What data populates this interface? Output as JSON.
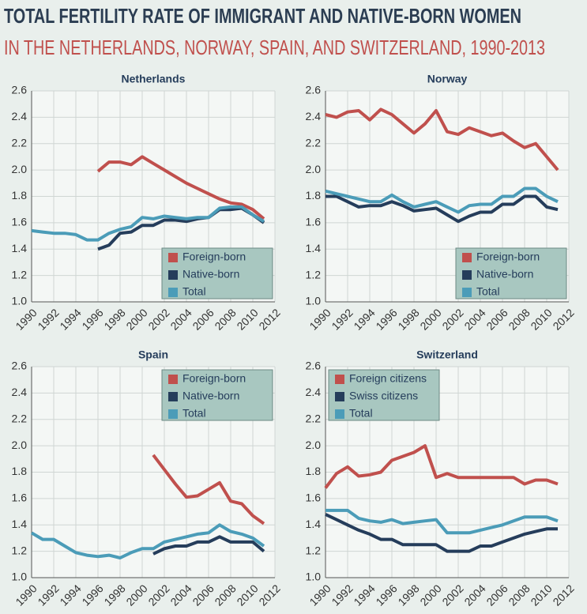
{
  "title": "TOTAL FERTILITY RATE OF IMMIGRANT AND NATIVE-BORN WOMEN",
  "subtitle": "IN THE NETHERLANDS, NORWAY, SPAIN, AND SWITZERLAND, 1990-2013",
  "chart_data": [
    {
      "type": "line",
      "title": "Netherlands",
      "legend": "lower right",
      "grid": true,
      "xlim": [
        1990,
        2012
      ],
      "xticks": [
        1990,
        1992,
        1994,
        1996,
        1998,
        2000,
        2002,
        2004,
        2006,
        2008,
        2010,
        2012
      ],
      "ylim": [
        1.0,
        2.6
      ],
      "yticks": [
        {
          "value": 1.0,
          "label": "1.0"
        },
        1.2,
        1.4,
        1.6,
        1.8,
        {
          "value": 2.0,
          "label": "2.0"
        },
        2.2,
        2.4,
        2.6
      ],
      "series": [
        {
          "name": "Foreign-born",
          "color": "#c0504d",
          "x": [
            1996,
            1997,
            1998,
            1999,
            2000,
            2001,
            2002,
            2003,
            2004,
            2005,
            2006,
            2007,
            2008,
            2009,
            2010,
            2011
          ],
          "values": [
            1.99,
            2.06,
            2.06,
            2.04,
            2.1,
            2.05,
            2.0,
            1.95,
            1.9,
            1.86,
            1.82,
            1.78,
            1.75,
            1.74,
            1.7,
            1.63
          ]
        },
        {
          "name": "Native-born",
          "color": "#253d5b",
          "x": [
            1996,
            1997,
            1998,
            1999,
            2000,
            2001,
            2002,
            2003,
            2004,
            2005,
            2006,
            2007,
            2008,
            2009,
            2010,
            2011
          ],
          "values": [
            1.4,
            1.43,
            1.52,
            1.53,
            1.58,
            1.58,
            1.62,
            1.62,
            1.61,
            1.63,
            1.64,
            1.7,
            1.7,
            1.71,
            1.66,
            1.6
          ]
        },
        {
          "name": "Total",
          "color": "#4b9cb8",
          "x": [
            1990,
            1991,
            1992,
            1993,
            1994,
            1995,
            1996,
            1997,
            1998,
            1999,
            2000,
            2001,
            2002,
            2003,
            2004,
            2005,
            2006,
            2007,
            2008,
            2009,
            2010,
            2011
          ],
          "values": [
            1.54,
            1.53,
            1.52,
            1.52,
            1.51,
            1.47,
            1.47,
            1.52,
            1.55,
            1.57,
            1.64,
            1.63,
            1.65,
            1.64,
            1.63,
            1.64,
            1.64,
            1.71,
            1.72,
            1.72,
            1.66,
            1.61
          ]
        }
      ]
    },
    {
      "type": "line",
      "title": "Norway",
      "legend": "lower right",
      "grid": true,
      "xlim": [
        1990,
        2012
      ],
      "xticks": [
        1990,
        1992,
        1994,
        1996,
        1998,
        2000,
        2002,
        2004,
        2006,
        2008,
        2010,
        2012
      ],
      "ylim": [
        1.0,
        2.6
      ],
      "yticks": [
        {
          "value": 1.0,
          "label": "1.0"
        },
        1.2,
        1.4,
        1.6,
        1.8,
        {
          "value": 2.0,
          "label": "2.0"
        },
        2.2,
        2.4,
        2.6
      ],
      "series": [
        {
          "name": "Foreign-born",
          "color": "#c0504d",
          "x": [
            1990,
            1991,
            1992,
            1993,
            1994,
            1995,
            1996,
            1997,
            1998,
            1999,
            2000,
            2001,
            2002,
            2003,
            2004,
            2005,
            2006,
            2007,
            2008,
            2009,
            2010,
            2011
          ],
          "values": [
            2.42,
            2.4,
            2.44,
            2.45,
            2.38,
            2.46,
            2.42,
            2.35,
            2.28,
            2.35,
            2.45,
            2.29,
            2.27,
            2.32,
            2.29,
            2.26,
            2.28,
            2.22,
            2.17,
            2.2,
            2.1,
            2.0
          ]
        },
        {
          "name": "Native-born",
          "color": "#253d5b",
          "x": [
            1990,
            1991,
            1992,
            1993,
            1994,
            1995,
            1996,
            1997,
            1998,
            1999,
            2000,
            2001,
            2002,
            2003,
            2004,
            2005,
            2006,
            2007,
            2008,
            2009,
            2010,
            2011
          ],
          "values": [
            1.8,
            1.8,
            1.76,
            1.72,
            1.73,
            1.73,
            1.76,
            1.73,
            1.69,
            1.7,
            1.71,
            1.66,
            1.61,
            1.65,
            1.68,
            1.68,
            1.74,
            1.74,
            1.8,
            1.8,
            1.72,
            1.7
          ]
        },
        {
          "name": "Total",
          "color": "#4b9cb8",
          "x": [
            1990,
            1991,
            1992,
            1993,
            1994,
            1995,
            1996,
            1997,
            1998,
            1999,
            2000,
            2001,
            2002,
            2003,
            2004,
            2005,
            2006,
            2007,
            2008,
            2009,
            2010,
            2011
          ],
          "values": [
            1.84,
            1.82,
            1.8,
            1.78,
            1.76,
            1.76,
            1.81,
            1.76,
            1.72,
            1.74,
            1.76,
            1.72,
            1.68,
            1.73,
            1.74,
            1.74,
            1.8,
            1.8,
            1.86,
            1.86,
            1.8,
            1.76
          ]
        }
      ]
    },
    {
      "type": "line",
      "title": "Spain",
      "legend": "upper right",
      "grid": true,
      "xlim": [
        1990,
        2012
      ],
      "xticks": [
        1990,
        1992,
        1994,
        1996,
        1998,
        2000,
        2002,
        2004,
        2006,
        2008,
        2010,
        2012
      ],
      "ylim": [
        1.0,
        2.6
      ],
      "yticks": [
        {
          "value": 1.0,
          "label": "1.0"
        },
        1.2,
        1.4,
        1.6,
        1.8,
        {
          "value": 2.0,
          "label": "2.0"
        },
        2.2,
        2.4,
        2.6
      ],
      "series": [
        {
          "name": "Foreign-born",
          "color": "#c0504d",
          "x": [
            2001,
            2002,
            2003,
            2004,
            2005,
            2006,
            2007,
            2008,
            2009,
            2010,
            2011
          ],
          "values": [
            1.93,
            1.82,
            1.71,
            1.61,
            1.62,
            1.67,
            1.72,
            1.58,
            1.56,
            1.47,
            1.41
          ]
        },
        {
          "name": "Native-born",
          "color": "#253d5b",
          "x": [
            2001,
            2002,
            2003,
            2004,
            2005,
            2006,
            2007,
            2008,
            2009,
            2010,
            2011
          ],
          "values": [
            1.18,
            1.22,
            1.24,
            1.24,
            1.27,
            1.27,
            1.31,
            1.27,
            1.27,
            1.27,
            1.2
          ]
        },
        {
          "name": "Total",
          "color": "#4b9cb8",
          "x": [
            1990,
            1991,
            1992,
            1993,
            1994,
            1995,
            1996,
            1997,
            1998,
            1999,
            2000,
            2001,
            2002,
            2003,
            2004,
            2005,
            2006,
            2007,
            2008,
            2009,
            2010,
            2011
          ],
          "values": [
            1.34,
            1.29,
            1.29,
            1.24,
            1.19,
            1.17,
            1.16,
            1.17,
            1.15,
            1.19,
            1.22,
            1.22,
            1.27,
            1.29,
            1.31,
            1.33,
            1.34,
            1.4,
            1.35,
            1.33,
            1.3,
            1.24
          ]
        }
      ]
    },
    {
      "type": "line",
      "title": "Switzerland",
      "legend": "upper left",
      "grid": true,
      "xlim": [
        1990,
        2012
      ],
      "xticks": [
        1990,
        1992,
        1994,
        1996,
        1998,
        2000,
        2002,
        2004,
        2006,
        2008,
        2010,
        2012
      ],
      "ylim": [
        1.0,
        2.6
      ],
      "yticks": [
        {
          "value": 1.0,
          "label": "1.0"
        },
        1.2,
        1.4,
        1.6,
        1.8,
        {
          "value": 2.0,
          "label": "2.0"
        },
        2.2,
        2.4,
        2.6
      ],
      "series": [
        {
          "name": "Foreign citizens",
          "color": "#c0504d",
          "x": [
            1990,
            1991,
            1992,
            1993,
            1994,
            1995,
            1996,
            1997,
            1998,
            1999,
            2000,
            2001,
            2002,
            2003,
            2004,
            2005,
            2006,
            2007,
            2008,
            2009,
            2010,
            2011
          ],
          "values": [
            1.68,
            1.79,
            1.84,
            1.77,
            1.78,
            1.8,
            1.89,
            1.92,
            1.95,
            2.0,
            1.76,
            1.79,
            1.76,
            1.76,
            1.76,
            1.76,
            1.76,
            1.76,
            1.71,
            1.74,
            1.74,
            1.71
          ]
        },
        {
          "name": "Swiss citizens",
          "color": "#253d5b",
          "x": [
            1990,
            1991,
            1992,
            1993,
            1994,
            1995,
            1996,
            1997,
            1998,
            1999,
            2000,
            2001,
            2002,
            2003,
            2004,
            2005,
            2006,
            2007,
            2008,
            2009,
            2010,
            2011
          ],
          "values": [
            1.48,
            1.44,
            1.4,
            1.36,
            1.33,
            1.29,
            1.29,
            1.25,
            1.25,
            1.25,
            1.25,
            1.2,
            1.2,
            1.2,
            1.24,
            1.24,
            1.27,
            1.3,
            1.33,
            1.35,
            1.37,
            1.37
          ]
        },
        {
          "name": "Total",
          "color": "#4b9cb8",
          "x": [
            1990,
            1991,
            1992,
            1993,
            1994,
            1995,
            1996,
            1997,
            1998,
            1999,
            2000,
            2001,
            2002,
            2003,
            2004,
            2005,
            2006,
            2007,
            2008,
            2009,
            2010,
            2011
          ],
          "values": [
            1.51,
            1.51,
            1.51,
            1.45,
            1.43,
            1.42,
            1.44,
            1.41,
            1.42,
            1.43,
            1.44,
            1.34,
            1.34,
            1.34,
            1.36,
            1.38,
            1.4,
            1.43,
            1.46,
            1.46,
            1.46,
            1.43
          ]
        }
      ]
    }
  ]
}
